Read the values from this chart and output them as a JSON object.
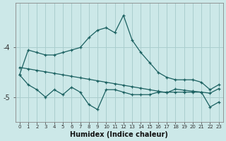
{
  "xlabel": "Humidex (Indice chaleur)",
  "x": [
    0,
    1,
    2,
    3,
    4,
    5,
    6,
    7,
    8,
    9,
    10,
    11,
    12,
    13,
    14,
    15,
    16,
    17,
    18,
    19,
    20,
    21,
    22,
    23
  ],
  "line1": [
    -4.55,
    -4.05,
    -4.1,
    -4.15,
    -4.15,
    -4.1,
    -4.05,
    -4.0,
    -3.8,
    -3.65,
    -3.6,
    -3.7,
    -3.35,
    -3.85,
    -4.1,
    -4.3,
    -4.5,
    -4.6,
    -4.65,
    -4.65,
    -4.65,
    -4.7,
    -4.85,
    -4.75
  ],
  "line2": [
    -4.4,
    -4.43,
    -4.46,
    -4.49,
    -4.52,
    -4.55,
    -4.58,
    -4.61,
    -4.64,
    -4.67,
    -4.7,
    -4.73,
    -4.76,
    -4.79,
    -4.82,
    -4.85,
    -4.88,
    -4.91,
    -4.84,
    -4.86,
    -4.88,
    -4.9,
    -4.92,
    -4.83
  ],
  "line3": [
    -4.55,
    -4.75,
    -4.85,
    -5.0,
    -4.85,
    -4.95,
    -4.8,
    -4.9,
    -5.15,
    -5.25,
    -4.85,
    -4.85,
    -4.9,
    -4.95,
    -4.95,
    -4.95,
    -4.9,
    -4.9,
    -4.9,
    -4.9,
    -4.9,
    -4.9,
    -5.2,
    -5.1
  ],
  "bg_color": "#cce8e8",
  "line_color": "#1a6060",
  "grid_color": "#aacece",
  "ylim": [
    -5.5,
    -3.1
  ],
  "yticks": [
    -4.0,
    -5.0
  ],
  "xlim": [
    -0.5,
    23.5
  ]
}
